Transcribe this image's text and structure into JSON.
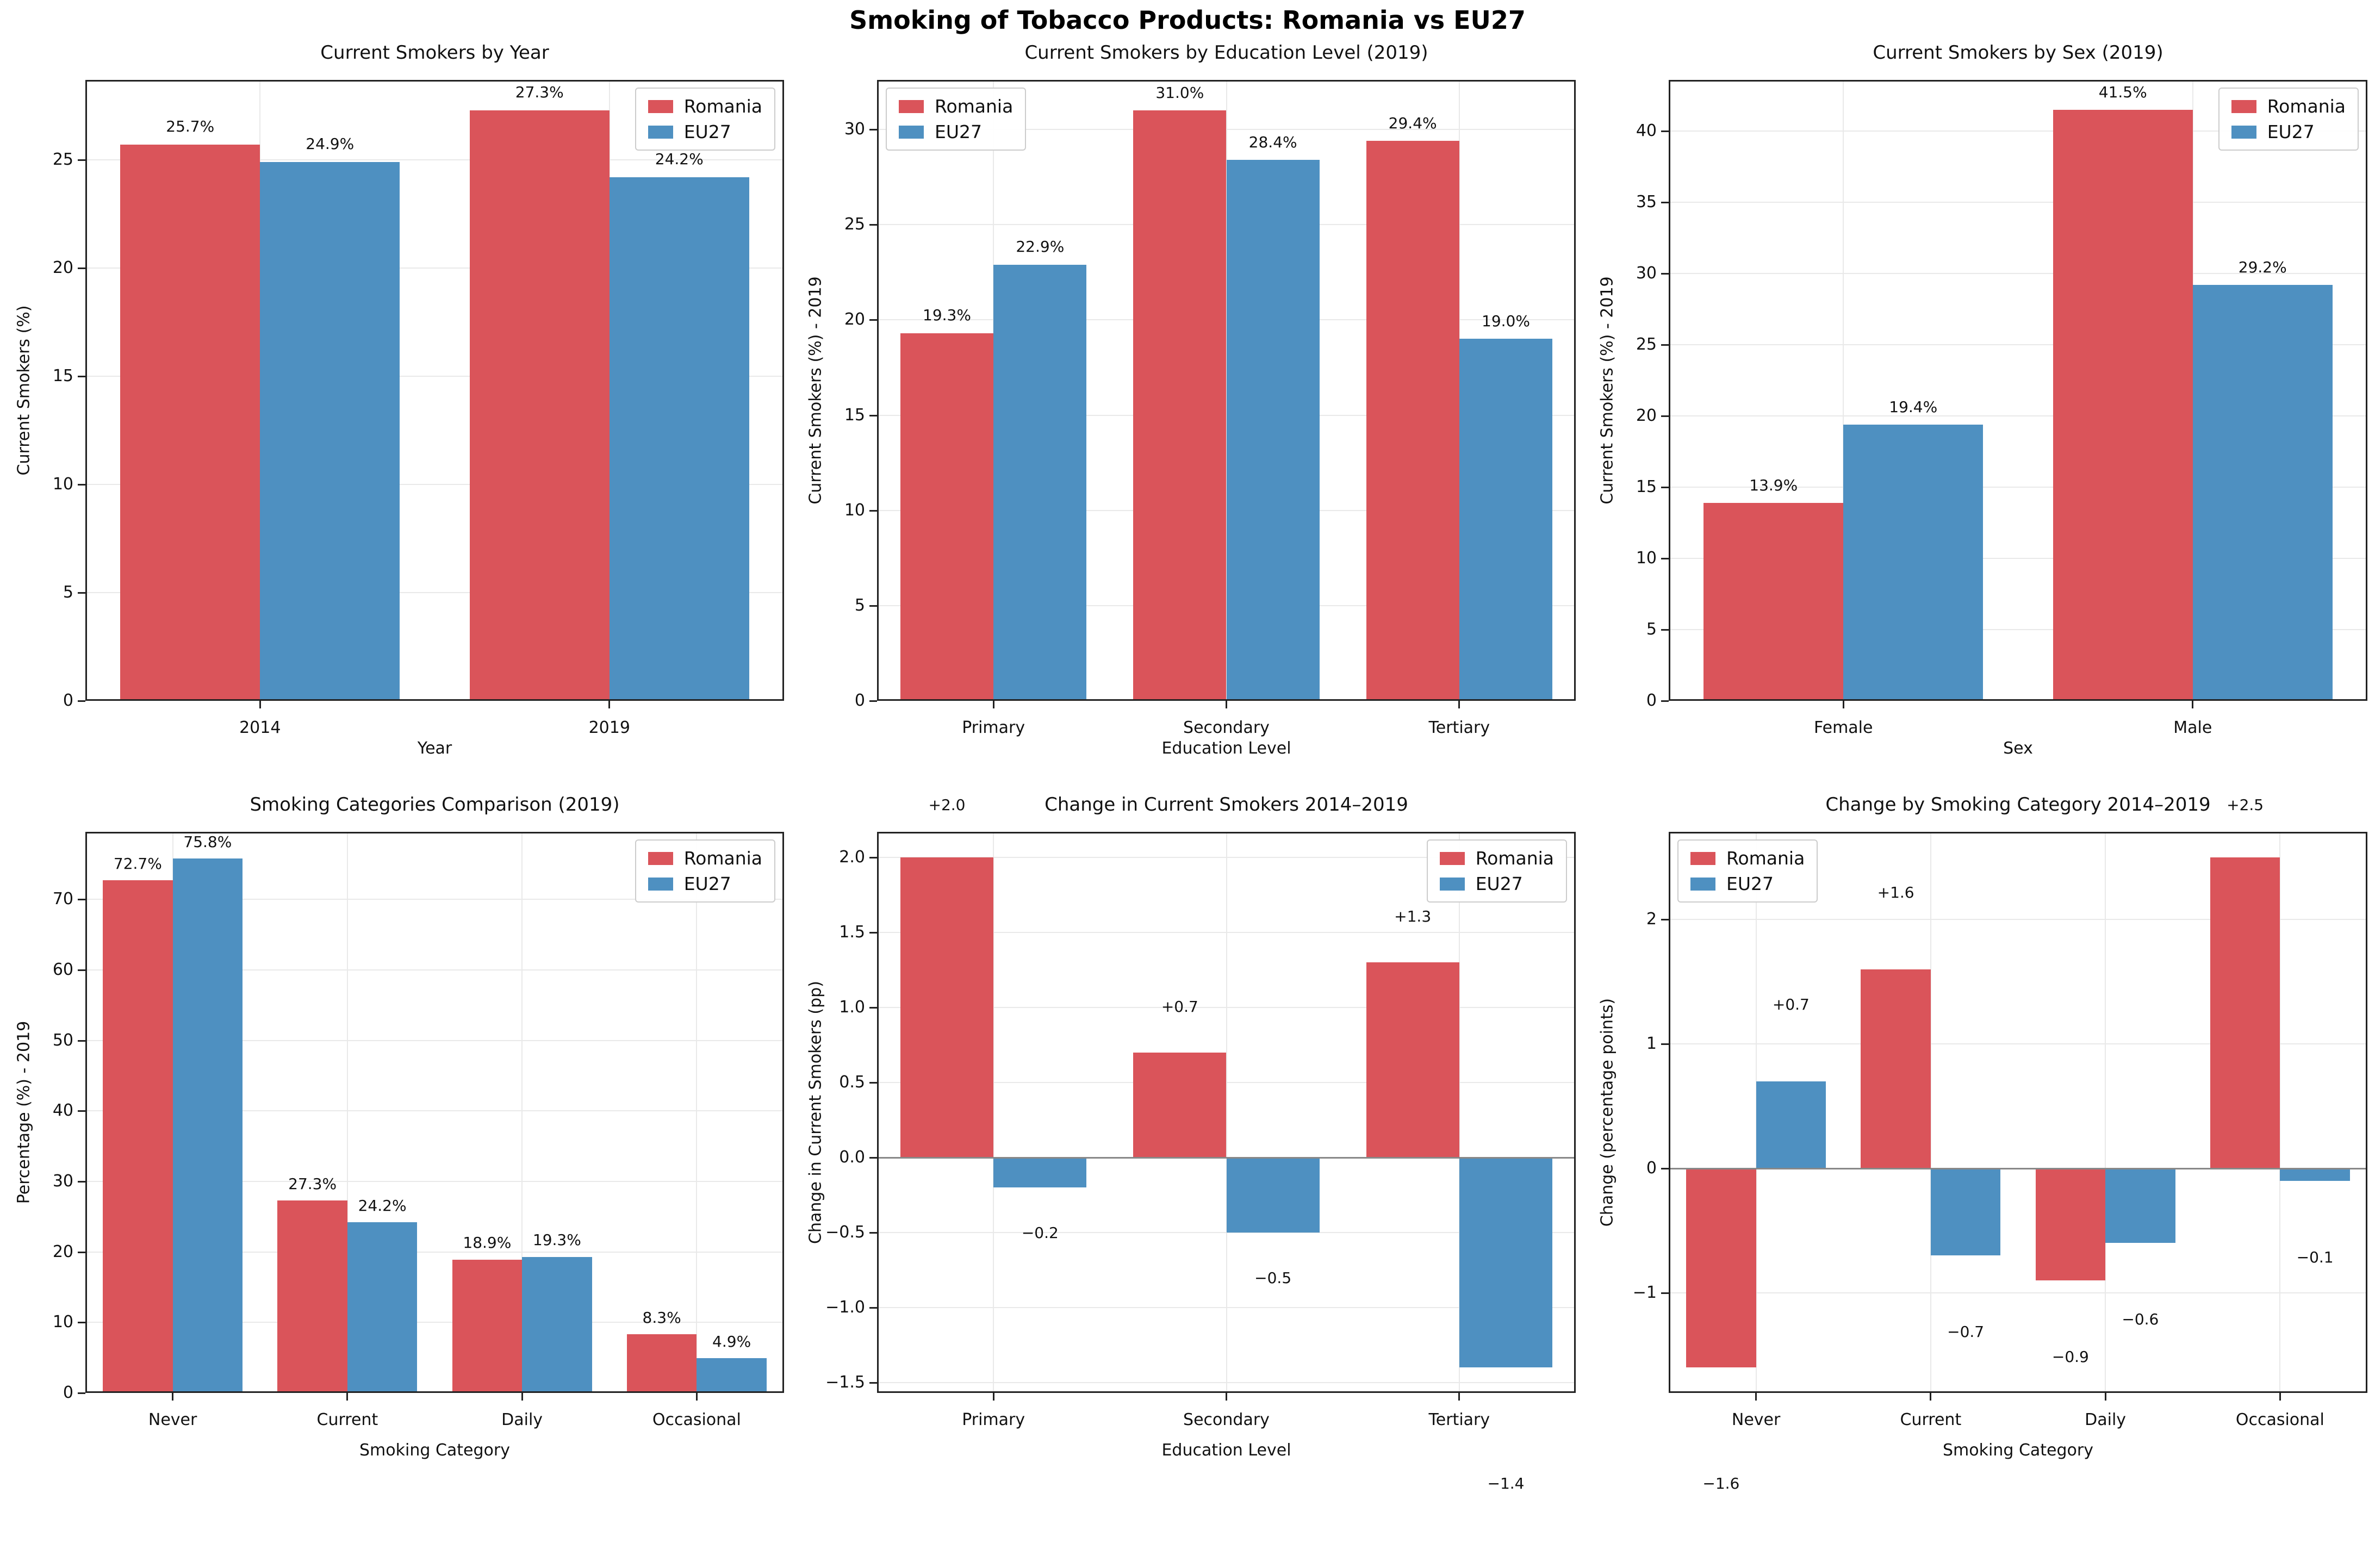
{
  "suptitle": "Smoking of Tobacco Products: Romania vs EU27",
  "colors": {
    "romania": "#da545a",
    "eu27": "#4e90c1",
    "grid": "#e9e9e9",
    "spine": "#222222",
    "zero_line": "#888888",
    "background": "#ffffff"
  },
  "chart_data": [
    {
      "type": "bar",
      "title": "Current Smokers by Year",
      "xlabel": "Year",
      "ylabel": "Current Smokers (%)",
      "categories": [
        "2014",
        "2019"
      ],
      "series": [
        {
          "name": "Romania",
          "values": [
            25.7,
            27.3
          ],
          "labels": [
            "25.7%",
            "27.3%"
          ]
        },
        {
          "name": "EU27",
          "values": [
            24.9,
            24.2
          ],
          "labels": [
            "24.9%",
            "24.2%"
          ]
        }
      ],
      "ylim": [
        0,
        28.7
      ],
      "yticks": [
        {
          "v": 0,
          "label": "0"
        },
        {
          "v": 5,
          "label": "5"
        },
        {
          "v": 10,
          "label": "10"
        },
        {
          "v": 15,
          "label": "15"
        },
        {
          "v": 20,
          "label": "20"
        },
        {
          "v": 25,
          "label": "25"
        }
      ],
      "legend_pos": "top-right",
      "grid": true,
      "zero_line": false,
      "label_offset": 0.45
    },
    {
      "type": "bar",
      "title": "Current Smokers by Education Level (2019)",
      "xlabel": "Education Level",
      "ylabel": "Current Smokers (%) - 2019",
      "categories": [
        "Primary",
        "Secondary",
        "Tertiary"
      ],
      "series": [
        {
          "name": "Romania",
          "values": [
            19.3,
            31.0,
            29.4
          ],
          "labels": [
            "19.3%",
            "31.0%",
            "29.4%"
          ]
        },
        {
          "name": "EU27",
          "values": [
            22.9,
            28.4,
            19.0
          ],
          "labels": [
            "22.9%",
            "28.4%",
            "19.0%"
          ]
        }
      ],
      "ylim": [
        0,
        32.6
      ],
      "yticks": [
        {
          "v": 0,
          "label": "0"
        },
        {
          "v": 5,
          "label": "5"
        },
        {
          "v": 10,
          "label": "10"
        },
        {
          "v": 15,
          "label": "15"
        },
        {
          "v": 20,
          "label": "20"
        },
        {
          "v": 25,
          "label": "25"
        },
        {
          "v": 30,
          "label": "30"
        }
      ],
      "legend_pos": "top-left",
      "grid": true,
      "zero_line": false,
      "label_offset": 0.5
    },
    {
      "type": "bar",
      "title": "Current Smokers by Sex (2019)",
      "xlabel": "Sex",
      "ylabel": "Current Smokers (%) - 2019",
      "categories": [
        "Female",
        "Male"
      ],
      "series": [
        {
          "name": "Romania",
          "values": [
            13.9,
            41.5
          ],
          "labels": [
            "13.9%",
            "41.5%"
          ]
        },
        {
          "name": "EU27",
          "values": [
            19.4,
            29.2
          ],
          "labels": [
            "19.4%",
            "29.2%"
          ]
        }
      ],
      "ylim": [
        0,
        43.6
      ],
      "yticks": [
        {
          "v": 0,
          "label": "0"
        },
        {
          "v": 5,
          "label": "5"
        },
        {
          "v": 10,
          "label": "10"
        },
        {
          "v": 15,
          "label": "15"
        },
        {
          "v": 20,
          "label": "20"
        },
        {
          "v": 25,
          "label": "25"
        },
        {
          "v": 30,
          "label": "30"
        },
        {
          "v": 35,
          "label": "35"
        },
        {
          "v": 40,
          "label": "40"
        }
      ],
      "legend_pos": "top-right",
      "grid": true,
      "zero_line": false,
      "label_offset": 0.65
    },
    {
      "type": "bar",
      "title": "Smoking Categories Comparison (2019)",
      "xlabel": "Smoking Category",
      "ylabel": "Percentage (%) - 2019",
      "categories": [
        "Never",
        "Current",
        "Daily",
        "Occasional"
      ],
      "series": [
        {
          "name": "Romania",
          "values": [
            72.7,
            27.3,
            18.9,
            8.3
          ],
          "labels": [
            "72.7%",
            "27.3%",
            "18.9%",
            "8.3%"
          ]
        },
        {
          "name": "EU27",
          "values": [
            75.8,
            24.2,
            19.3,
            4.9
          ],
          "labels": [
            "75.8%",
            "24.2%",
            "19.3%",
            "4.9%"
          ]
        }
      ],
      "ylim": [
        0,
        79.6
      ],
      "yticks": [
        {
          "v": 0,
          "label": "0"
        },
        {
          "v": 10,
          "label": "10"
        },
        {
          "v": 20,
          "label": "20"
        },
        {
          "v": 30,
          "label": "30"
        },
        {
          "v": 40,
          "label": "40"
        },
        {
          "v": 50,
          "label": "50"
        },
        {
          "v": 60,
          "label": "60"
        },
        {
          "v": 70,
          "label": "70"
        }
      ],
      "legend_pos": "top-right",
      "grid": true,
      "zero_line": false,
      "label_offset": 1.2
    },
    {
      "type": "bar",
      "title": "Change in Current Smokers 2014–2019",
      "xlabel": "Education Level",
      "ylabel": "Change in Current Smokers (pp)",
      "categories": [
        "Primary",
        "Secondary",
        "Tertiary"
      ],
      "series": [
        {
          "name": "Romania",
          "values": [
            2.0,
            0.7,
            1.3
          ],
          "labels": [
            "+2.0",
            "+0.7",
            "+1.3"
          ]
        },
        {
          "name": "EU27",
          "values": [
            -0.2,
            -0.5,
            -1.4
          ],
          "labels": [
            "−0.2",
            "−0.5",
            "−1.4"
          ]
        }
      ],
      "ylim": [
        -1.57,
        2.17
      ],
      "yticks": [
        {
          "v": 2.0,
          "label": "2.0"
        },
        {
          "v": 1.5,
          "label": "1.5"
        },
        {
          "v": 1.0,
          "label": "1.0"
        },
        {
          "v": 0.5,
          "label": "0.5"
        },
        {
          "v": 0.0,
          "label": "0.0"
        },
        {
          "v": -0.5,
          "label": "−0.5"
        },
        {
          "v": -1.0,
          "label": "−1.0"
        },
        {
          "v": -1.5,
          "label": "−1.5"
        }
      ],
      "legend_pos": "top-right",
      "grid": true,
      "zero_line": true,
      "label_offset": 0.25
    },
    {
      "type": "bar",
      "title": "Change by Smoking Category 2014–2019",
      "xlabel": "Smoking Category",
      "ylabel": "Change (percentage points)",
      "categories": [
        "Never",
        "Current",
        "Daily",
        "Occasional"
      ],
      "series": [
        {
          "name": "Romania",
          "values": [
            -1.6,
            1.6,
            -0.9,
            2.5
          ],
          "labels": [
            "−1.6",
            "+1.6",
            "−0.9",
            "+2.5"
          ]
        },
        {
          "name": "EU27",
          "values": [
            0.7,
            -0.7,
            -0.6,
            -0.1
          ],
          "labels": [
            "+0.7",
            "−0.7",
            "−0.6",
            "−0.1"
          ]
        }
      ],
      "ylim": [
        -1.805,
        2.705
      ],
      "yticks": [
        {
          "v": 2,
          "label": "2"
        },
        {
          "v": 1,
          "label": "1"
        },
        {
          "v": 0,
          "label": "0"
        },
        {
          "v": -1,
          "label": "−1"
        }
      ],
      "legend_pos": "top-left",
      "grid": true,
      "zero_line": true,
      "label_offset": 0.55
    }
  ]
}
